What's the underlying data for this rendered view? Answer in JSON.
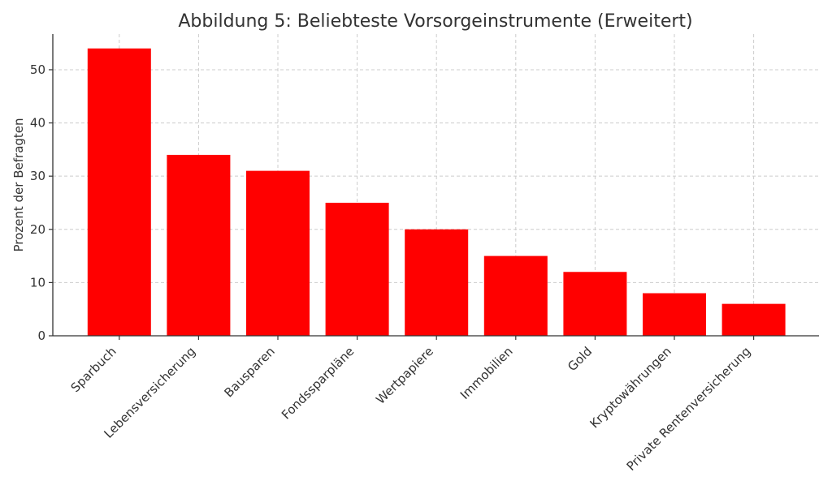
{
  "chart_data": {
    "type": "bar",
    "title": "Abbildung 5: Beliebteste Vorsorgeinstrumente (Erweitert)",
    "xlabel": "",
    "ylabel": "Prozent der Befragten",
    "categories": [
      "Sparbuch",
      "Lebensversicherung",
      "Bausparen",
      "Fondssparpläne",
      "Wertpapiere",
      "Immobilien",
      "Gold",
      "Kryptowährungen",
      "Private Rentenversicherung"
    ],
    "values": [
      54,
      34,
      31,
      25,
      20,
      15,
      12,
      8,
      6
    ],
    "ylim": [
      0,
      56.7
    ],
    "yticks": [
      0,
      10,
      20,
      30,
      40,
      50
    ],
    "grid": true,
    "bar_color": "#ff0000"
  }
}
